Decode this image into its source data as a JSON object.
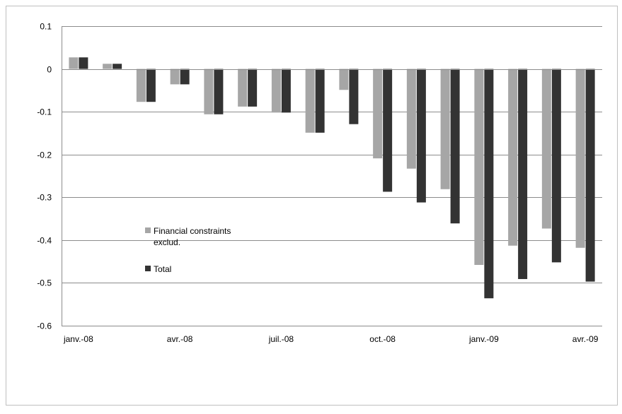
{
  "chart_data": {
    "type": "bar",
    "title": "",
    "xlabel": "",
    "ylabel": "",
    "ylim": [
      -0.6,
      0.1
    ],
    "yticks": [
      0.1,
      0,
      -0.1,
      -0.2,
      -0.3,
      -0.4,
      -0.5,
      -0.6
    ],
    "ytick_labels": [
      "0.1",
      "0",
      "-0.1",
      "-0.2",
      "-0.3",
      "-0.4",
      "-0.5",
      "-0.6"
    ],
    "xtick_labels": [
      {
        "label": "janv.-08",
        "index": 0
      },
      {
        "label": "avr.-08",
        "index": 3
      },
      {
        "label": "juil.-08",
        "index": 6
      },
      {
        "label": "oct.-08",
        "index": 9
      },
      {
        "label": "janv.-09",
        "index": 12
      },
      {
        "label": "avr.-09",
        "index": 15
      }
    ],
    "grid": true,
    "legend_position": "center-left",
    "series": [
      {
        "name": "Financial constraints exclud.",
        "legend_lines": [
          "Financial constraints",
          "exclud."
        ],
        "color": "#a6a6a6",
        "values": [
          0.027,
          0.012,
          -0.077,
          -0.036,
          -0.106,
          -0.088,
          -0.102,
          -0.149,
          -0.049,
          -0.209,
          -0.233,
          -0.281,
          -0.458,
          -0.413,
          -0.373,
          -0.418
        ]
      },
      {
        "name": "Total",
        "legend_lines": [
          "Total"
        ],
        "color": "#333333",
        "values": [
          0.027,
          0.012,
          -0.077,
          -0.036,
          -0.106,
          -0.088,
          -0.102,
          -0.149,
          -0.129,
          -0.287,
          -0.312,
          -0.361,
          -0.536,
          -0.491,
          -0.452,
          -0.497
        ]
      }
    ]
  }
}
